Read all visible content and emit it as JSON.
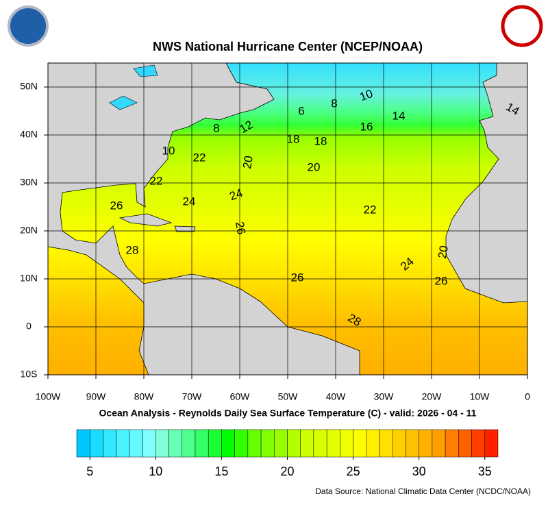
{
  "header": {
    "title": "NWS National Hurricane Center (NCEP/NOAA)",
    "subtitle": "Ocean Analysis - Reynolds Daily Sea Surface Temperature (C) - valid: 2026 - 04 - 11",
    "source": "Data Source: National Climatic Data Center (NCDC/NOAA)"
  },
  "map": {
    "lon_lim": [
      -100,
      0
    ],
    "lat_lim": [
      -10,
      55
    ],
    "lon_ticks": [
      {
        "value": -100,
        "label": "100W"
      },
      {
        "value": -90,
        "label": "90W"
      },
      {
        "value": -80,
        "label": "80W"
      },
      {
        "value": -70,
        "label": "70W"
      },
      {
        "value": -60,
        "label": "60W"
      },
      {
        "value": -50,
        "label": "50W"
      },
      {
        "value": -40,
        "label": "40W"
      },
      {
        "value": -30,
        "label": "30W"
      },
      {
        "value": -20,
        "label": "20W"
      },
      {
        "value": -10,
        "label": "10W"
      },
      0
    ],
    "lat_ticks": [
      {
        "value": 50,
        "label": "50N"
      },
      {
        "value": 40,
        "label": "40N"
      },
      {
        "value": 30,
        "label": "30N"
      },
      {
        "value": 20,
        "label": "20N"
      },
      {
        "value": 10,
        "label": "10N"
      },
      0,
      {
        "value": -10,
        "label": "10S"
      }
    ],
    "contour_labels": [
      10,
      6,
      8,
      14,
      14,
      16,
      8,
      12,
      18,
      18,
      10,
      22,
      20,
      20,
      22,
      26,
      24,
      24,
      22,
      26,
      28,
      20,
      24,
      26,
      26,
      28
    ]
  },
  "colorbar": {
    "lim": [
      4,
      36
    ],
    "ticks": [
      5,
      10,
      15,
      20,
      25,
      30,
      35
    ],
    "colors": [
      "#00c8ff",
      "#19dcff",
      "#33e8ff",
      "#4df2ff",
      "#66faff",
      "#80ffff",
      "#80ffd9",
      "#66ffb3",
      "#4dff8c",
      "#33ff66",
      "#19ff33",
      "#00ff00",
      "#33ff00",
      "#66ff00",
      "#80ff00",
      "#99ff00",
      "#b3ff00",
      "#ccff00",
      "#d9ff00",
      "#e6ff00",
      "#f2ff00",
      "#ffff00",
      "#fff000",
      "#ffe000",
      "#ffd000",
      "#ffc000",
      "#ffb000",
      "#ffa000",
      "#ff8000",
      "#ff6000",
      "#ff4000",
      "#ff2000"
    ]
  }
}
